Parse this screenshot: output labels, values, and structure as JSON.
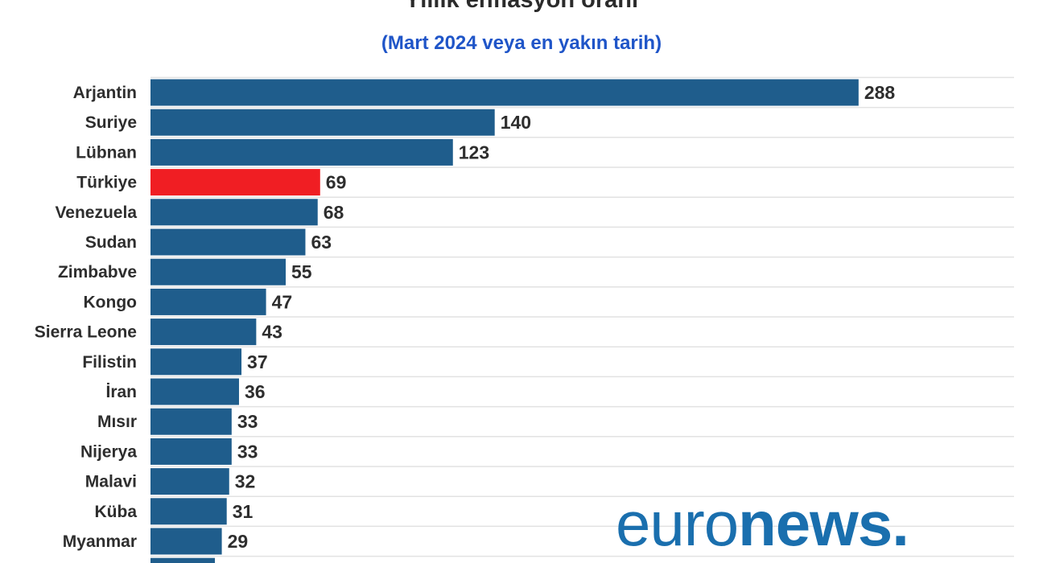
{
  "header": {
    "title": "Yıllık enflasyon oranı",
    "subtitle": "(Mart 2024 veya en yakın tarih)"
  },
  "colors": {
    "bar": "#1f5d8c",
    "highlight": "#f01e23",
    "grid": "#e2e2e2"
  },
  "chart_data": {
    "type": "bar",
    "orientation": "horizontal",
    "title": "Yıllık enflasyon oranı",
    "subtitle": "(Mart 2024 veya en yakın tarih)",
    "categories": [
      "Arjantin",
      "Suriye",
      "Lübnan",
      "Türkiye",
      "Venezuela",
      "Sudan",
      "Zimbabve",
      "Kongo",
      "Sierra Leone",
      "Filistin",
      "İran",
      "Mısır",
      "Nijerya",
      "Malavi",
      "Küba",
      "Myanmar"
    ],
    "values": [
      288,
      140,
      123,
      69,
      68,
      63,
      55,
      47,
      43,
      37,
      36,
      33,
      33,
      32,
      31,
      29
    ],
    "highlight": "Türkiye",
    "xlim": [
      0,
      300
    ],
    "grid": true,
    "legend": false
  },
  "logo": {
    "part1": "euro",
    "part2": "news."
  }
}
